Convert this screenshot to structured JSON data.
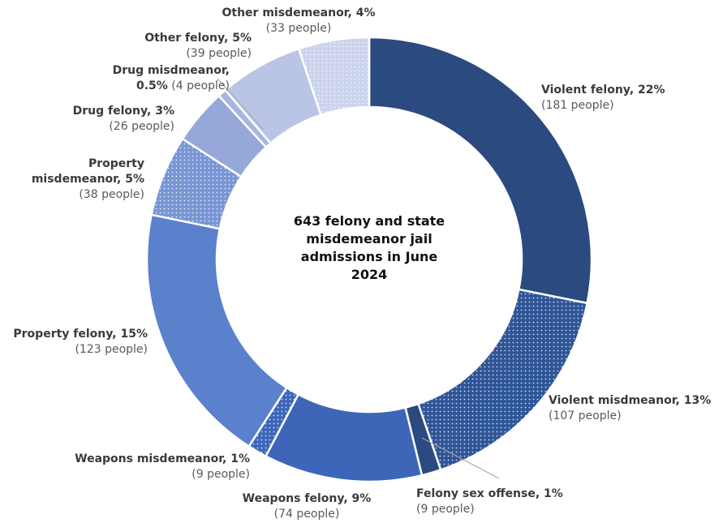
{
  "chart_data": {
    "type": "donut",
    "center_text": "643 felony and state misdemeanor jail admissions in June 2024",
    "categories": [
      "Violent felony, 22%",
      "Violent misdmeanor, 13%",
      "Felony sex offense, 1%",
      "Weapons felony, 9%",
      "Weapons misdemeanor, 1%",
      "Property felony, 15%",
      "Property misdemeanor, 5%",
      "Drug felony, 3%",
      "Drug misdmeanor, 0.5%",
      "Other felony, 5%",
      "Other misdemeanor, 4%"
    ],
    "values": [
      181,
      107,
      9,
      74,
      9,
      123,
      38,
      26,
      4,
      39,
      33
    ],
    "value_labels": [
      "(181 people)",
      "(107 people)",
      "(9 people)",
      "(74 people)",
      "(9 people)",
      "(123 people)",
      "(38 people)",
      "(26 people)",
      "(4 people)",
      "(39 people)",
      "(33 people)"
    ],
    "colors": [
      "#2b4a80",
      "#2e5597",
      "#2b4a80",
      "#3d66b8",
      "#3d66b8",
      "#5b80cc",
      "#7895d5",
      "#95a8d9",
      "#a8b6df",
      "#bac5e6",
      "#cbd3ed"
    ],
    "dotted": [
      false,
      true,
      false,
      false,
      true,
      false,
      true,
      false,
      false,
      false,
      true
    ]
  }
}
